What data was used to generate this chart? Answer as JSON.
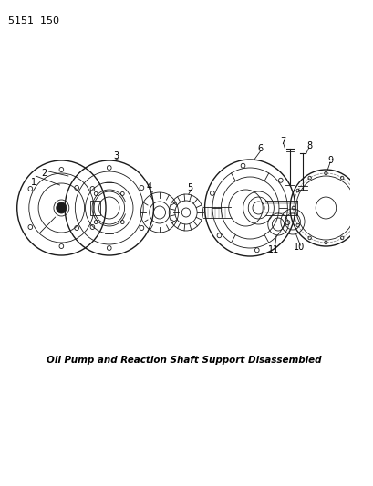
{
  "background_color": "#ffffff",
  "page_number": "5151  150",
  "caption": "Oil Pump and Reaction Shaft Support Disassembled",
  "caption_bold": true,
  "caption_fontsize": 7.5,
  "page_number_fontsize": 8,
  "figsize": [
    4.1,
    5.33
  ],
  "dpi": 100,
  "parts": {
    "part1_label": "1",
    "part2_label": "2",
    "part3_label": "3",
    "part4_label": "4",
    "part5_label": "5",
    "part6_label": "6",
    "part7_label": "7",
    "part8_label": "8",
    "part9_label": "9",
    "part10_label": "10",
    "part11_label": "11"
  },
  "line_color": "#1a1a1a",
  "label_color": "#000000"
}
